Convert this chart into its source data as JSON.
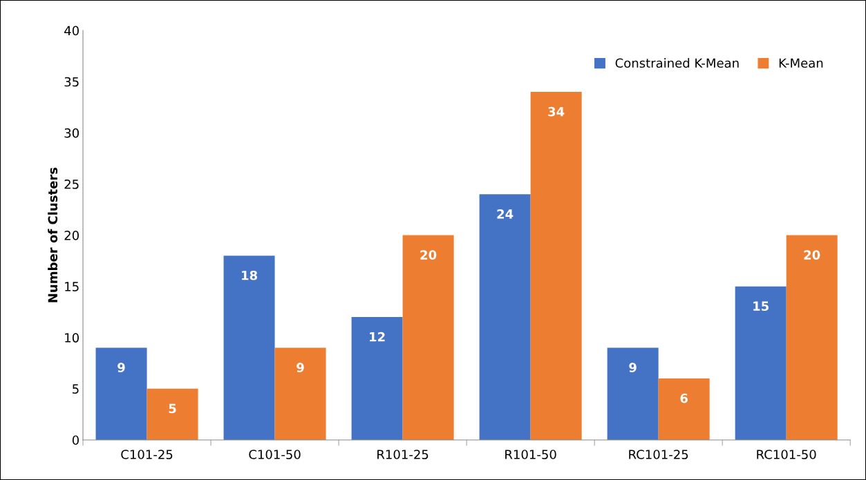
{
  "chart_data": {
    "type": "bar",
    "ylabel": "Number of Clusters",
    "categories": [
      "C101-25",
      "C101-50",
      "R101-25",
      "R101-50",
      "RC101-25",
      "RC101-50"
    ],
    "series": [
      {
        "name": "Constrained K-Mean",
        "color": "#4472c4",
        "values": [
          9,
          18,
          12,
          24,
          9,
          15
        ]
      },
      {
        "name": "K-Mean",
        "color": "#ed7d31",
        "values": [
          5,
          9,
          20,
          34,
          6,
          20
        ]
      }
    ],
    "ylim": [
      0,
      40
    ],
    "yticks": [
      0,
      5,
      10,
      15,
      20,
      25,
      30,
      35,
      40
    ],
    "data_labels": true,
    "legend": "top right",
    "grid": false
  }
}
